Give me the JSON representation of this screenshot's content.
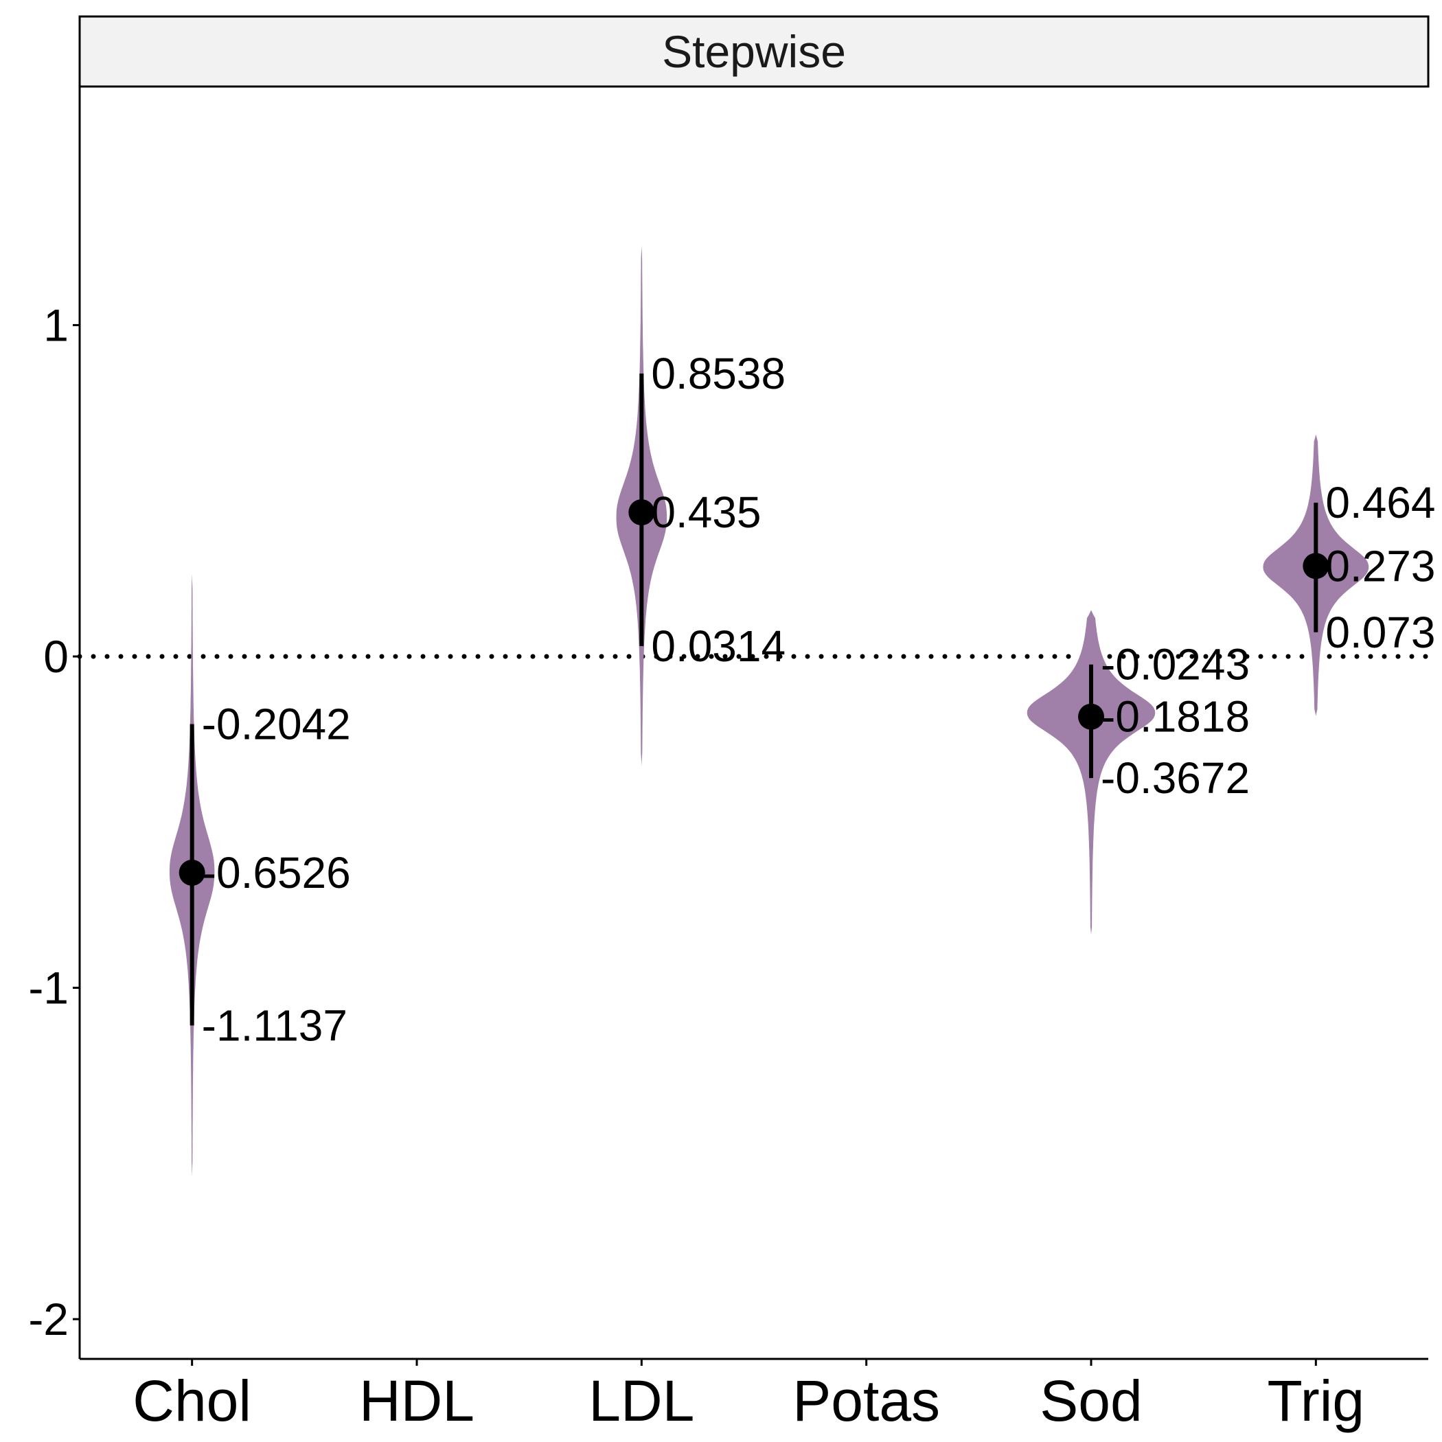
{
  "chart_data": {
    "type": "violin",
    "facet_title": "Stepwise",
    "categories": [
      "Chol",
      "HDL",
      "LDL",
      "Potas",
      "Sod",
      "Trig"
    ],
    "ylim": [
      -2.12,
      1.72
    ],
    "yticks": [
      1,
      0,
      -1,
      -2
    ],
    "ytick_labels": [
      "1",
      "0",
      "-1",
      "-2"
    ],
    "reference_line": {
      "y": 0,
      "style": "dotted"
    },
    "colors": {
      "violin_fill": "#a07fa8",
      "point": "#000000",
      "strip_bg": "#f2f2f2"
    },
    "grid": false,
    "series": [
      {
        "category": "Chol",
        "median": -0.6526,
        "lower": -1.1137,
        "upper": -0.2042,
        "labels": {
          "upper": "-0.2042",
          "median": "-0.6526",
          "lower": "-1.1137"
        },
        "violin": {
          "min": -1.57,
          "max": 0.25,
          "center": -0.65,
          "halfwidth": 0.2,
          "tail_scale": 0.16,
          "tail_power": 1.15
        }
      },
      {
        "category": "LDL",
        "median": 0.435,
        "lower": 0.0314,
        "upper": 0.8538,
        "labels": {
          "upper": "0.8538",
          "median": "0.435",
          "lower": "0.0314"
        },
        "violin": {
          "min": -0.33,
          "max": 1.24,
          "center": 0.42,
          "halfwidth": 0.225,
          "tail_scale": 0.15,
          "tail_power": 1.15
        }
      },
      {
        "category": "Sod",
        "median": -0.1818,
        "lower": -0.3672,
        "upper": -0.0243,
        "labels": {
          "upper": "-0.0243",
          "median": "-0.1818",
          "lower": "-0.3672"
        },
        "violin": {
          "min": -0.84,
          "max": 0.14,
          "center": -0.17,
          "halfwidth": 0.57,
          "tail_scale": 0.085,
          "tail_power": 1.1
        }
      },
      {
        "category": "Trig",
        "median": 0.273,
        "lower": 0.073,
        "upper": 0.464,
        "labels": {
          "upper": "0.464",
          "median": "0.273",
          "lower": "0.073"
        },
        "violin": {
          "min": -0.18,
          "max": 0.67,
          "center": 0.27,
          "halfwidth": 0.47,
          "tail_scale": 0.085,
          "tail_power": 1.1
        }
      }
    ]
  }
}
